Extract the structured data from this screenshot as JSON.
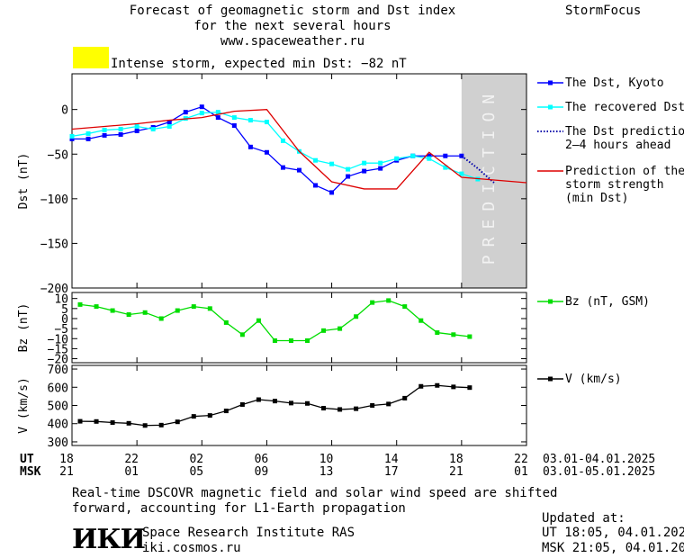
{
  "header": {
    "title_line1": "Forecast of geomagnetic storm and Dst index",
    "title_line2": "for the next several hours",
    "url": "www.spaceweather.ru",
    "brand": "StormFocus",
    "storm_text": "Intense storm, expected min Dst: −82 nT",
    "storm_color": "#ffff00"
  },
  "footer": {
    "note_line1": "Real-time DSCOVR magnetic field and solar wind speed are shifted",
    "note_line2": "forward, accounting for L1-Earth propagation",
    "logo_text": "ИКИ",
    "institute": "Space Research Institute RAS",
    "site": "iki.cosmos.ru",
    "updated_label": "Updated at:",
    "updated_ut": "UT   18:05, 04.01.2025",
    "updated_msk": "MSK 21:05, 04.01.2025"
  },
  "chart_data": {
    "type": "line",
    "x_axis": {
      "ut_label": "UT",
      "msk_label": "MSK",
      "ut_ticks": [
        "18",
        "22",
        "02",
        "06",
        "10",
        "14",
        "18",
        "22"
      ],
      "msk_ticks": [
        "21",
        "01",
        "05",
        "09",
        "13",
        "17",
        "21",
        "01"
      ],
      "ut_range_text": "03.01-04.01.2025",
      "msk_range_text": "03.01-05.01.2025",
      "tick_hours": [
        0,
        4,
        8,
        12,
        16,
        20,
        24,
        28
      ],
      "xlim_hours": [
        0,
        28
      ]
    },
    "prediction_label": "PREDICTION",
    "prediction_start_hour": 24,
    "panels": [
      {
        "ylabel": "Dst (nT)",
        "ylim": [
          -200,
          40
        ],
        "yticks": [
          0,
          -50,
          -100,
          -150,
          -200
        ],
        "ytick_labels": [
          "0",
          "−50",
          "−100",
          "−150",
          "−200"
        ],
        "series": [
          {
            "name": "The Dst, Kyoto",
            "color": "#0000ff",
            "style": "line-square",
            "x": [
              0,
              1,
              2,
              3,
              4,
              5,
              6,
              7,
              8,
              9,
              10,
              11,
              12,
              13,
              14,
              15,
              16,
              17,
              18,
              19,
              20,
              21,
              22,
              23,
              24
            ],
            "values": [
              -33,
              -33,
              -29,
              -28,
              -24,
              -20,
              -14,
              -3,
              3,
              -9,
              -18,
              -42,
              -48,
              -65,
              -68,
              -85,
              -93,
              -75,
              -69,
              -66,
              -57,
              -52,
              -52,
              -52,
              -52
            ]
          },
          {
            "name": "The recovered Dst",
            "color": "#00ffff",
            "style": "line-square",
            "x": [
              0,
              1,
              2,
              3,
              4,
              5,
              6,
              7,
              8,
              9,
              10,
              11,
              12,
              13,
              14,
              15,
              16,
              17,
              18,
              19,
              20,
              21,
              22,
              23,
              24,
              25
            ],
            "values": [
              -30,
              -27,
              -23,
              -22,
              -19,
              -22,
              -19,
              -10,
              -4,
              -3,
              -9,
              -12,
              -14,
              -35,
              -47,
              -57,
              -61,
              -67,
              -60,
              -60,
              -55,
              -52,
              -55,
              -65,
              -72,
              -78
            ]
          },
          {
            "name": "The Dst prediction\n2–4 hours ahead",
            "color": "#0000aa",
            "style": "dotted",
            "x": [
              24,
              25,
              26
            ],
            "values": [
              -52,
              -66,
              -82
            ]
          },
          {
            "name": "Prediction of the\nstorm strength\n(min Dst)",
            "color": "#dd0000",
            "style": "step",
            "x": [
              0,
              2,
              4,
              6,
              8,
              10,
              12,
              14,
              16,
              18,
              20,
              22,
              24,
              28
            ],
            "values": [
              -22,
              -19,
              -16,
              -12,
              -9,
              -2,
              0,
              -47,
              -81,
              -89,
              -89,
              -48,
              -76,
              -82
            ]
          }
        ]
      },
      {
        "ylabel": "Bz (nT)",
        "ylim": [
          -22,
          13
        ],
        "yticks": [
          10,
          5,
          0,
          -5,
          -10,
          -15,
          -20
        ],
        "ytick_labels": [
          "10",
          "5",
          "0",
          "−5",
          "−10",
          "−15",
          "−20"
        ],
        "series": [
          {
            "name": "Bz (nT, GSM)",
            "color": "#00dd00",
            "style": "line-square",
            "x": [
              0.5,
              1.5,
              2.5,
              3.5,
              4.5,
              5.5,
              6.5,
              7.5,
              8.5,
              9.5,
              10.5,
              11.5,
              12.5,
              13.5,
              14.5,
              15.5,
              16.5,
              17.5,
              18.5,
              19.5,
              20.5,
              21.5,
              22.5,
              23.5,
              24.5
            ],
            "values": [
              7,
              6,
              4,
              2,
              3,
              0,
              4,
              6,
              5,
              -2,
              -8,
              -1,
              -11,
              -11,
              -11,
              -6,
              -5,
              1,
              8,
              9,
              6,
              -1,
              -7,
              -8,
              -9
            ]
          }
        ]
      },
      {
        "ylabel": "V (km/s)",
        "ylim": [
          280,
          720
        ],
        "yticks": [
          700,
          600,
          500,
          400,
          300
        ],
        "ytick_labels": [
          "700",
          "600",
          "500",
          "400",
          "300"
        ],
        "series": [
          {
            "name": "V (km/s)",
            "color": "#000000",
            "style": "line-square",
            "x": [
              0.5,
              1.5,
              2.5,
              3.5,
              4.5,
              5.5,
              6.5,
              7.5,
              8.5,
              9.5,
              10.5,
              11.5,
              12.5,
              13.5,
              14.5,
              15.5,
              16.5,
              17.5,
              18.5,
              19.5,
              20.5,
              21.5,
              22.5,
              23.5,
              24.5
            ],
            "values": [
              413,
              412,
              406,
              402,
              390,
              392,
              410,
              440,
              445,
              470,
              505,
              532,
              524,
              513,
              511,
              485,
              478,
              482,
              500,
              508,
              540,
              605,
              610,
              602,
              598
            ]
          }
        ]
      }
    ]
  }
}
